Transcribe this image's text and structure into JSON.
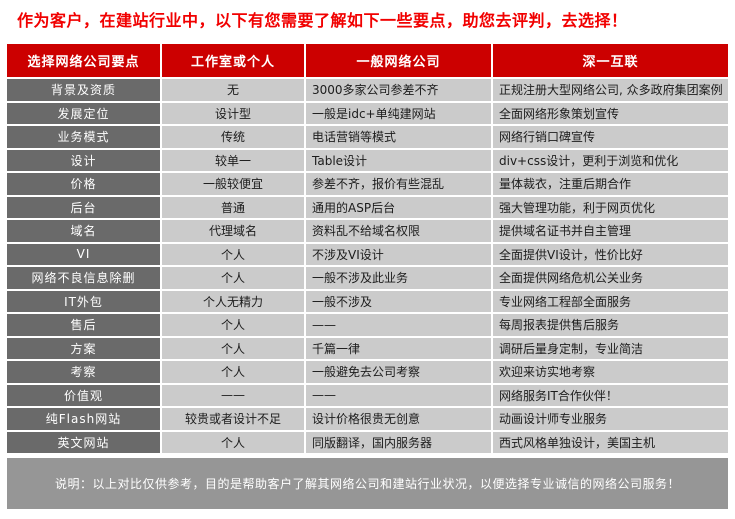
{
  "title": "作为客户，在建站行业中，以下有您需要了解如下一些要点，助您去评判，去选择！",
  "table": {
    "headers": [
      "选择网络公司要点",
      "工作室或个人",
      "一般网络公司",
      "深一互联"
    ],
    "rows": [
      {
        "point": "背景及资质",
        "studio": "无",
        "general": "3000多家公司参差不齐",
        "shenyi": "正规注册大型网络公司, 众多政府集团案例"
      },
      {
        "point": "发展定位",
        "studio": "设计型",
        "general": "一般是idc+单纯建网站",
        "shenyi": "全面网络形象策划宣传"
      },
      {
        "point": "业务模式",
        "studio": "传统",
        "general": "电话营销等模式",
        "shenyi": "网络行销口碑宣传"
      },
      {
        "point": "设计",
        "studio": "较单一",
        "general": "Table设计",
        "shenyi": "div+css设计，更利于浏览和优化"
      },
      {
        "point": "价格",
        "studio": "一般较便宜",
        "general": "参差不齐，报价有些混乱",
        "shenyi": "量体裁衣，注重后期合作"
      },
      {
        "point": "后台",
        "studio": "普通",
        "general": "通用的ASP后台",
        "shenyi": "强大管理功能，利于网页优化"
      },
      {
        "point": "域名",
        "studio": "代理域名",
        "general": "资料乱不给域名权限",
        "shenyi": "提供域名证书并自主管理"
      },
      {
        "point": "VI",
        "studio": "个人",
        "general": "不涉及VI设计",
        "shenyi": "全面提供VI设计，性价比好"
      },
      {
        "point": "网络不良信息除删",
        "studio": "个人",
        "general": "一般不涉及此业务",
        "shenyi": "全面提供网络危机公关业务"
      },
      {
        "point": "IT外包",
        "studio": "个人无精力",
        "general": "一般不涉及",
        "shenyi": "专业网络工程部全面服务"
      },
      {
        "point": "售后",
        "studio": "个人",
        "general": "——",
        "shenyi": "每周报表提供售后服务"
      },
      {
        "point": "方案",
        "studio": "个人",
        "general": "千篇一律",
        "shenyi": "调研后量身定制，专业简洁"
      },
      {
        "point": "考察",
        "studio": "个人",
        "general": "一般避免去公司考察",
        "shenyi": "欢迎来访实地考察"
      },
      {
        "point": "价值观",
        "studio": "——",
        "general": "——",
        "shenyi": "网络服务IT合作伙伴！"
      },
      {
        "point": "纯Flash网站",
        "studio": "较贵或者设计不足",
        "general": "设计价格很贵无创意",
        "shenyi": "动画设计师专业服务"
      },
      {
        "point": "英文网站",
        "studio": "个人",
        "general": "同版翻译，国内服务器",
        "shenyi": "西式风格单独设计，美国主机"
      }
    ]
  },
  "footer": {
    "note": "说明：以上对比仅供参考，目的是帮助客户了解其网络公司和建站行业状况，以便选择专业诚信的网络公司服务！"
  },
  "colors": {
    "title_red": "#f10000",
    "header_red": "#cc0000",
    "label_gray": "#6a6a6a",
    "cell_gray": "#cbcbcb",
    "footer_gray": "#969696"
  }
}
